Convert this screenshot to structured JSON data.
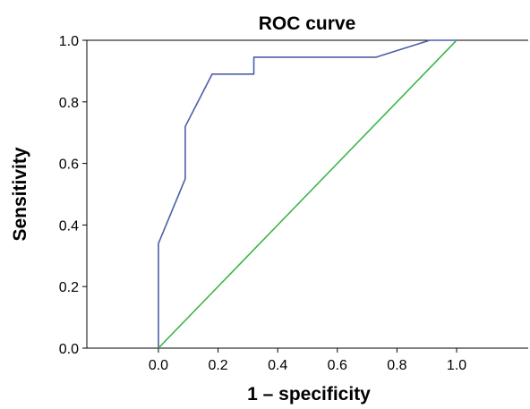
{
  "chart_data": {
    "type": "line",
    "title": "ROC curve",
    "xlabel": "1 – specificity",
    "ylabel": "Sensitivity",
    "xlim": [
      -0.24,
      1.24
    ],
    "ylim": [
      0,
      1
    ],
    "xticks": [
      "0.0",
      "0.2",
      "0.4",
      "0.6",
      "0.8",
      "1.0"
    ],
    "yticks": [
      "0.0",
      "0.2",
      "0.4",
      "0.6",
      "0.8",
      "1.0"
    ],
    "grid": false,
    "series": [
      {
        "color": "#4a5fa8",
        "x": [
          0.0,
          0.0,
          0.09,
          0.09,
          0.18,
          0.32,
          0.32,
          0.73,
          0.91,
          1.0
        ],
        "y": [
          0.0,
          0.34,
          0.55,
          0.72,
          0.89,
          0.89,
          0.945,
          0.945,
          1.0,
          1.0
        ]
      },
      {
        "color": "#3db54a",
        "x": [
          0.0,
          1.0
        ],
        "y": [
          0.0,
          1.0
        ]
      }
    ]
  }
}
